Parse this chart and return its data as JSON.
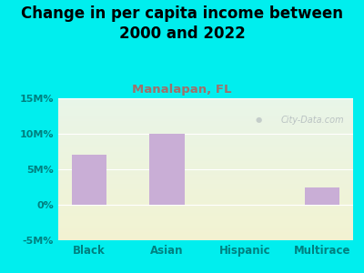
{
  "title": "Change in per capita income between\n2000 and 2022",
  "subtitle": "Manalapan, FL",
  "categories": [
    "Black",
    "Asian",
    "Hispanic",
    "Multirace"
  ],
  "values": [
    7.0,
    10.0,
    0.0,
    2.5
  ],
  "bar_color": "#c9aed6",
  "title_fontsize": 12,
  "subtitle_fontsize": 9.5,
  "subtitle_color": "#a0706a",
  "tick_label_color": "#008080",
  "background_color": "#00eeee",
  "ylim": [
    -5,
    15
  ],
  "yticks": [
    -5,
    0,
    5,
    10,
    15
  ],
  "ytick_labels": [
    "-5M%",
    "0%",
    "5M%",
    "10M%",
    "15M%"
  ],
  "watermark": "City-Data.com"
}
